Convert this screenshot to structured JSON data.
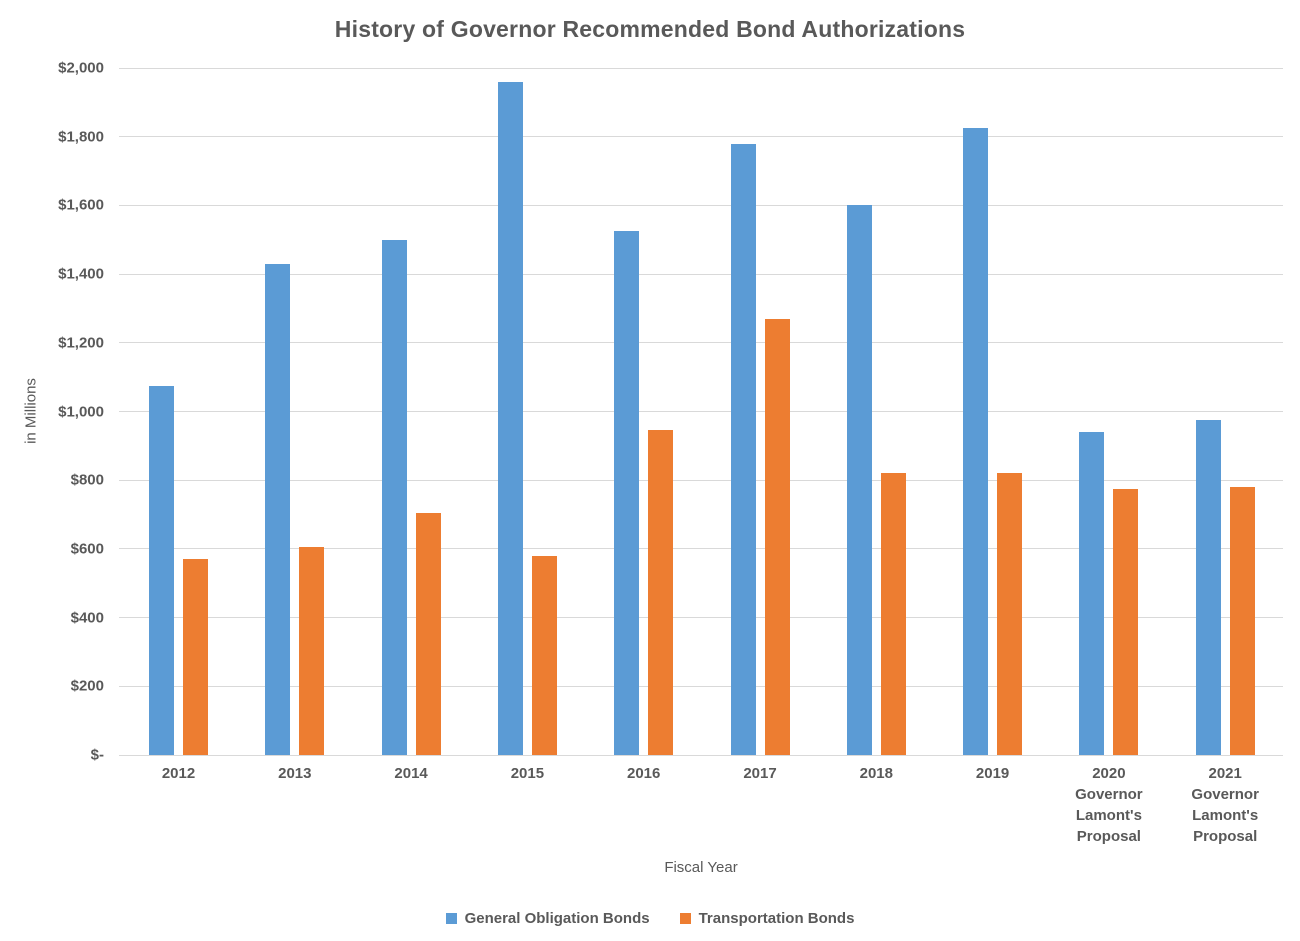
{
  "title": "History of Governor Recommended Bond Authorizations",
  "chart_data": {
    "type": "bar",
    "title": "History of Governor Recommended Bond Authorizations",
    "xlabel": "Fiscal Year",
    "ylabel": "in Millions",
    "categories": [
      "2012",
      "2013",
      "2014",
      "2015",
      "2016",
      "2017",
      "2018",
      "2019",
      "2020\nGovernor\nLamont's\nProposal",
      "2021\nGovernor\nLamont's\nProposal"
    ],
    "series": [
      {
        "name": "General Obligation Bonds",
        "color": "#5B9BD5",
        "values": [
          1075,
          1430,
          1500,
          1960,
          1525,
          1780,
          1600,
          1825,
          940,
          975
        ]
      },
      {
        "name": "Transportation Bonds",
        "color": "#ED7D31",
        "values": [
          570,
          605,
          705,
          580,
          945,
          1270,
          820,
          820,
          775,
          780
        ]
      }
    ],
    "ylim": [
      0,
      2000
    ],
    "ytick_step": 200,
    "ytick_labels": [
      "$-",
      "$200",
      "$400",
      "$600",
      "$800",
      "$1,000",
      "$1,200",
      "$1,400",
      "$1,600",
      "$1,800",
      "$2,000"
    ],
    "grid": true,
    "legend_position": "bottom"
  },
  "colors": {
    "text": "#595959",
    "gridline": "#D9D9D9",
    "background": "#FFFFFF",
    "series_blue": "#5B9BD5",
    "series_orange": "#ED7D31"
  }
}
